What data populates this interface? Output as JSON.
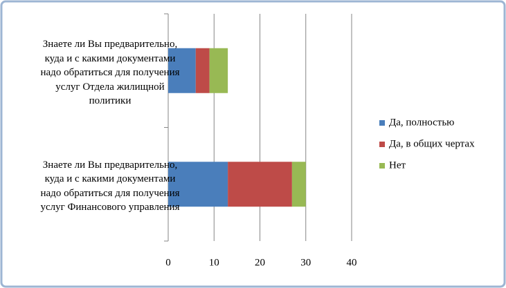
{
  "chart_data": {
    "type": "stacked-bar-horizontal",
    "categories": [
      "Знаете ли Вы предварительно, куда и с какими документами надо обратиться для получения услуг Отдела жилищной политики",
      "Знаете ли Вы предварительно, куда и с какими документами надо обратиться для получения услуг Финансового управления"
    ],
    "series": [
      {
        "name": "Да, полностью",
        "color": "#4a7ebb",
        "values": [
          6,
          13
        ]
      },
      {
        "name": "Да, в общих чертах",
        "color": "#be4b48",
        "values": [
          3,
          14
        ]
      },
      {
        "name": "Нет",
        "color": "#98b954",
        "values": [
          4,
          3
        ]
      }
    ],
    "xlim": [
      0,
      40
    ],
    "xticks": [
      0,
      10,
      20,
      30,
      40
    ],
    "grid": true,
    "legend": "right"
  }
}
